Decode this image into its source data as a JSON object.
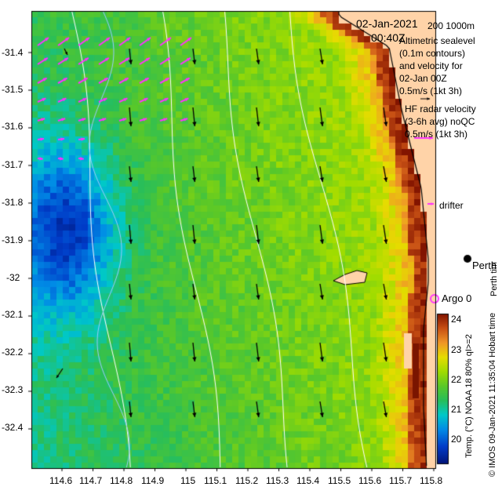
{
  "header": {
    "date": "02-Jan-2021",
    "time": "00:40Z",
    "scale_label": "200  1000m"
  },
  "legend": {
    "altimetric_lines": [
      "Altimetric sealevel",
      "(0.1m contours)",
      "and velocity for",
      "02-Jan 00Z",
      "0.5m/s (1kt 3h)"
    ],
    "hf_radar_lines": [
      "HF radar velocity",
      "(3-6h avg) noQC",
      "0.5m/s (1kt 3h)"
    ],
    "drifter_label": "drifter",
    "argo_label": "Argo 0",
    "place_label": "Perth",
    "place_code": "Perth tim"
  },
  "axes": {
    "y_ticks": [
      "-31.4",
      "-31.5",
      "-31.6",
      "-31.7",
      "-31.8",
      "-31.9",
      "-32",
      "-32.1",
      "-32.2",
      "-32.3",
      "-32.4"
    ],
    "x_ticks": [
      "114.6",
      "114.7",
      "114.8",
      "114.9",
      "115",
      "115.1",
      "115.2",
      "115.3",
      "115.4",
      "115.5",
      "115.6",
      "115.7",
      "115.8"
    ]
  },
  "colorbar": {
    "title": "Temp. (°C) NOAA 18 80% qI>=2",
    "ticks": [
      "24",
      "23",
      "22",
      "21",
      "20"
    ],
    "range": [
      19.3,
      24.5
    ]
  },
  "credit": "© IMOS 09-Jan-2021 11:35:04 Hobart time",
  "colors": {
    "land": "#ffd3a8",
    "hf_radar_arrow": "#ff33ff",
    "altimetry_arrow": "#000000",
    "contour": "#ffffff"
  }
}
